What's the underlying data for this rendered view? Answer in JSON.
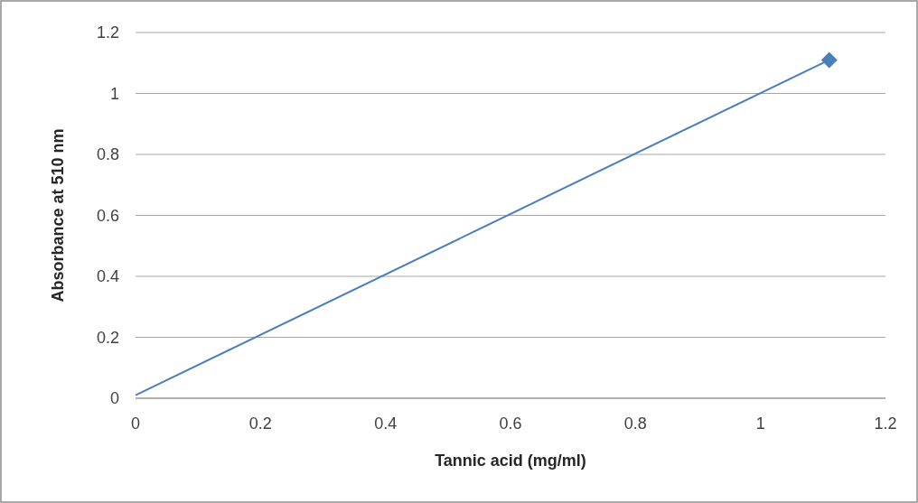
{
  "chart_data": {
    "type": "scatter",
    "xlabel": "Tannic acid (mg/ml)",
    "ylabel": "Absorbance at 510 nm",
    "xlim": [
      0,
      1.2
    ],
    "xticks": [
      0,
      0.2,
      0.4,
      0.6,
      0.8,
      1,
      1.2
    ],
    "ylim": [
      0,
      1.2
    ],
    "yticks": [
      0,
      0.2,
      0.4,
      0.6,
      0.8,
      1,
      1.2
    ],
    "grid": "y",
    "x": [
      0,
      1.11
    ],
    "series": [
      {
        "type": "line",
        "color": "#4a7ebb",
        "values": [
          0.01,
          1.11
        ],
        "marker": "none",
        "line_style": "solid"
      },
      {
        "color": "#4a7ebb",
        "values": [
          null,
          1.11
        ],
        "marker": "diamond"
      }
    ]
  }
}
